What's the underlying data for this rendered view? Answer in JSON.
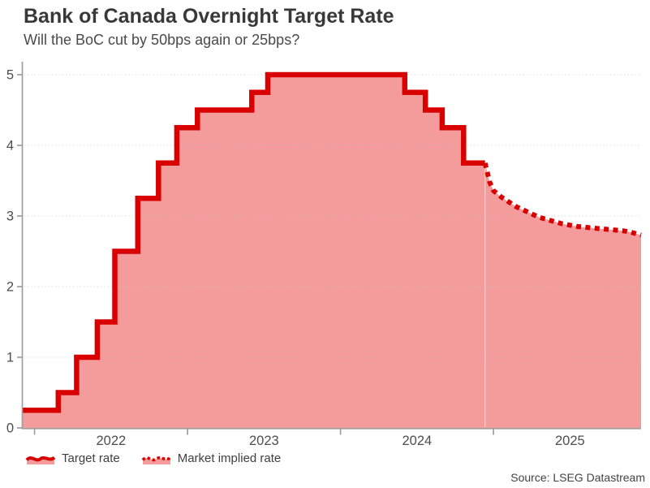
{
  "source": "Source: LSEG Datastream",
  "colors": {
    "line_red": "#d90000",
    "area_pink": "#f49c9c",
    "axis_gray": "#9e9e9e",
    "grid_gray": "#bfbfbf",
    "tick_text": "#4d4d4d",
    "title_text": "#383838",
    "subtitle_text": "#4a4a4a"
  },
  "chart_data": {
    "type": "area",
    "title": "Bank of Canada Overnight Target Rate",
    "subtitle": "Will the BoC cut by 50bps again or 25bps?",
    "xlabel": "",
    "ylabel": "",
    "y_unit": "percent",
    "x_unit": "decimal_year",
    "xlim": [
      2021.92,
      2025.965
    ],
    "ylim": [
      0,
      5
    ],
    "yticks": [
      0,
      1,
      2,
      3,
      4,
      5
    ],
    "xticks": [
      {
        "tick": 2022,
        "label": "2022"
      },
      {
        "tick": 2023,
        "label": "2023"
      },
      {
        "tick": 2024,
        "label": "2024"
      },
      {
        "tick": 2025,
        "label": "2025"
      }
    ],
    "grid": "horizontal-dotted",
    "legend_position": "bottom-left",
    "series": [
      {
        "name": "Target rate",
        "mode": "step-after",
        "line_style": "solid",
        "fill": true,
        "points": [
          [
            2021.92,
            0.25
          ],
          [
            2022.155,
            0.5
          ],
          [
            2022.275,
            1.0
          ],
          [
            2022.41,
            1.5
          ],
          [
            2022.525,
            2.5
          ],
          [
            2022.675,
            3.25
          ],
          [
            2022.81,
            3.75
          ],
          [
            2022.93,
            4.25
          ],
          [
            2023.065,
            4.5
          ],
          [
            2023.42,
            4.75
          ],
          [
            2023.525,
            5.0
          ],
          [
            2024.42,
            4.75
          ],
          [
            2024.555,
            4.5
          ],
          [
            2024.665,
            4.25
          ],
          [
            2024.805,
            3.75
          ],
          [
            2024.945,
            3.75
          ]
        ]
      },
      {
        "name": "Market implied rate",
        "mode": "line",
        "line_style": "dotted",
        "fill": true,
        "points": [
          [
            2024.945,
            3.75
          ],
          [
            2024.975,
            3.48
          ],
          [
            2025.0,
            3.36
          ],
          [
            2025.05,
            3.27
          ],
          [
            2025.1,
            3.2
          ],
          [
            2025.15,
            3.13
          ],
          [
            2025.2,
            3.08
          ],
          [
            2025.25,
            3.03
          ],
          [
            2025.3,
            2.98
          ],
          [
            2025.35,
            2.95
          ],
          [
            2025.4,
            2.92
          ],
          [
            2025.45,
            2.89
          ],
          [
            2025.5,
            2.87
          ],
          [
            2025.55,
            2.85
          ],
          [
            2025.6,
            2.84
          ],
          [
            2025.65,
            2.83
          ],
          [
            2025.7,
            2.82
          ],
          [
            2025.75,
            2.81
          ],
          [
            2025.8,
            2.8
          ],
          [
            2025.85,
            2.79
          ],
          [
            2025.9,
            2.77
          ],
          [
            2025.965,
            2.73
          ]
        ]
      }
    ]
  }
}
